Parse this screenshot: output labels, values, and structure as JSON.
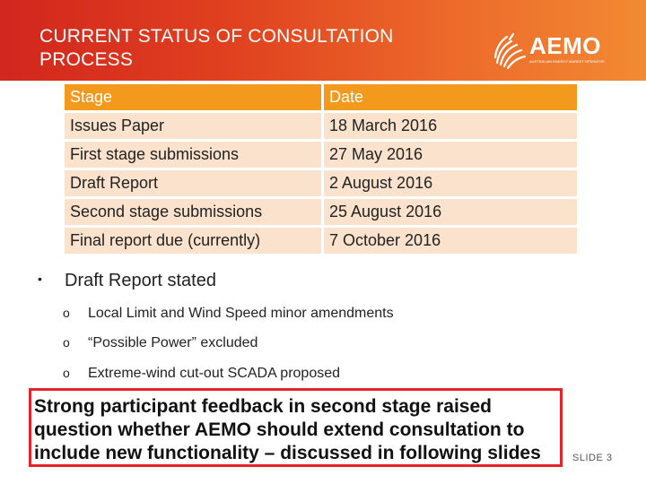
{
  "header": {
    "title_line1": "CURRENT STATUS OF CONSULTATION",
    "title_line2": "PROCESS",
    "logo_text": "AEMO",
    "logo_tagline": "AUSTRALIAN ENERGY MARKET OPERATOR"
  },
  "table": {
    "headers": [
      "Stage",
      "Date"
    ],
    "rows": [
      [
        "Issues Paper",
        "18 March 2016"
      ],
      [
        "First stage submissions",
        "27 May 2016"
      ],
      [
        "Draft Report",
        "2 August 2016"
      ],
      [
        "Second stage submissions",
        "25 August 2016"
      ],
      [
        "Final report due (currently)",
        "7 October 2016"
      ]
    ]
  },
  "bullet": {
    "marker": "•",
    "text": "Draft Report stated",
    "sub_marker": "o",
    "sub_items": [
      "Local Limit and Wind Speed minor amendments",
      "“Possible Power” excluded",
      "Extreme-wind cut-out SCADA proposed"
    ]
  },
  "callout": {
    "text": "Strong participant feedback in second stage raised question whether AEMO should extend consultation to include new functionality – discussed in following slides"
  },
  "footer": {
    "slide_number": "SLIDE 3"
  },
  "colors": {
    "header_start": "#d2261e",
    "header_end": "#f28a33",
    "table_header": "#f39a1c",
    "table_row": "#fbe2cd",
    "callout_border": "#e3242b"
  }
}
